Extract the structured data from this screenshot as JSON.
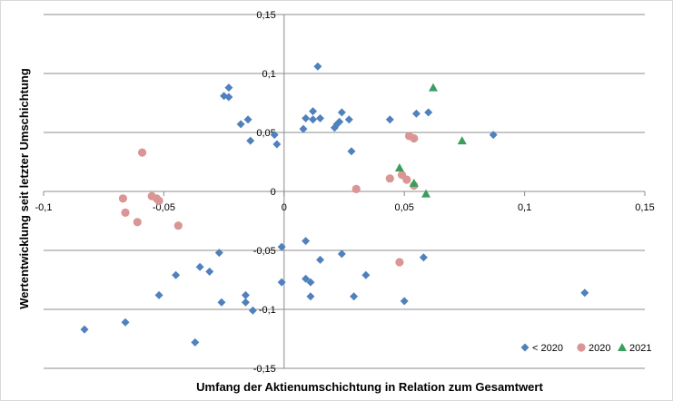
{
  "chart_data": {
    "type": "scatter",
    "xlabel": "Umfang der Aktienumschichtung in Relation zum Gesamtwert",
    "ylabel": "Wertentwicklung seit letzter Umschichtung",
    "xlim": [
      -0.1,
      0.15
    ],
    "ylim": [
      -0.15,
      0.15
    ],
    "x_ticks": [
      -0.1,
      -0.05,
      0,
      0.05,
      0.1,
      0.15
    ],
    "x_tick_labels": [
      "-0,1",
      "-0,05",
      "0",
      "0,05",
      "0,1",
      "0,15"
    ],
    "y_ticks": [
      0.15,
      0.1,
      0.05,
      0,
      -0.05,
      -0.1,
      -0.15
    ],
    "y_tick_labels": [
      "0,15",
      "0,1",
      "0,05",
      "0",
      "-0,05",
      "-0,1",
      "-0,15"
    ],
    "grid": "horizontal",
    "legend_position": "bottom-right",
    "series": [
      {
        "name": "< 2020",
        "marker": "diamond",
        "color": "#4f81bd",
        "points": [
          [
            0.014,
            0.106
          ],
          [
            -0.023,
            0.088
          ],
          [
            -0.025,
            0.081
          ],
          [
            -0.023,
            0.08
          ],
          [
            0.012,
            0.068
          ],
          [
            0.024,
            0.067
          ],
          [
            0.055,
            0.066
          ],
          [
            0.06,
            0.067
          ],
          [
            0.009,
            0.062
          ],
          [
            0.012,
            0.061
          ],
          [
            0.015,
            0.062
          ],
          [
            0.023,
            0.059
          ],
          [
            0.027,
            0.061
          ],
          [
            0.044,
            0.061
          ],
          [
            -0.015,
            0.061
          ],
          [
            -0.018,
            0.057
          ],
          [
            0.008,
            0.053
          ],
          [
            0.021,
            0.054
          ],
          [
            0.022,
            0.057
          ],
          [
            0.087,
            0.048
          ],
          [
            -0.004,
            0.048
          ],
          [
            -0.014,
            0.043
          ],
          [
            -0.003,
            0.04
          ],
          [
            0.028,
            0.034
          ],
          [
            -0.001,
            -0.047
          ],
          [
            0.009,
            -0.042
          ],
          [
            0.024,
            -0.053
          ],
          [
            -0.027,
            -0.052
          ],
          [
            0.015,
            -0.058
          ],
          [
            0.058,
            -0.056
          ],
          [
            -0.035,
            -0.064
          ],
          [
            -0.031,
            -0.068
          ],
          [
            -0.045,
            -0.071
          ],
          [
            0.034,
            -0.071
          ],
          [
            0.009,
            -0.074
          ],
          [
            0.011,
            -0.077
          ],
          [
            -0.001,
            -0.077
          ],
          [
            0.125,
            -0.086
          ],
          [
            -0.052,
            -0.088
          ],
          [
            -0.016,
            -0.088
          ],
          [
            0.011,
            -0.089
          ],
          [
            0.029,
            -0.089
          ],
          [
            -0.026,
            -0.094
          ],
          [
            -0.016,
            -0.094
          ],
          [
            0.05,
            -0.093
          ],
          [
            -0.013,
            -0.101
          ],
          [
            -0.066,
            -0.111
          ],
          [
            -0.083,
            -0.117
          ],
          [
            -0.037,
            -0.128
          ]
        ]
      },
      {
        "name": "2020",
        "marker": "circle",
        "color": "#d99694",
        "points": [
          [
            -0.059,
            0.033
          ],
          [
            -0.067,
            -0.006
          ],
          [
            -0.066,
            -0.018
          ],
          [
            -0.055,
            -0.004
          ],
          [
            -0.053,
            -0.006
          ],
          [
            -0.052,
            -0.008
          ],
          [
            -0.061,
            -0.026
          ],
          [
            -0.044,
            -0.029
          ],
          [
            0.03,
            0.002
          ],
          [
            0.044,
            0.011
          ],
          [
            0.049,
            0.014
          ],
          [
            0.051,
            0.01
          ],
          [
            0.052,
            0.047
          ],
          [
            0.054,
            0.045
          ],
          [
            0.054,
            0.005
          ],
          [
            0.048,
            -0.06
          ]
        ]
      },
      {
        "name": "2021",
        "marker": "triangle",
        "color": "#3a9e5f",
        "points": [
          [
            0.062,
            0.088
          ],
          [
            0.074,
            0.043
          ],
          [
            0.048,
            0.02
          ],
          [
            0.054,
            0.007
          ],
          [
            0.059,
            -0.002
          ]
        ]
      }
    ]
  }
}
